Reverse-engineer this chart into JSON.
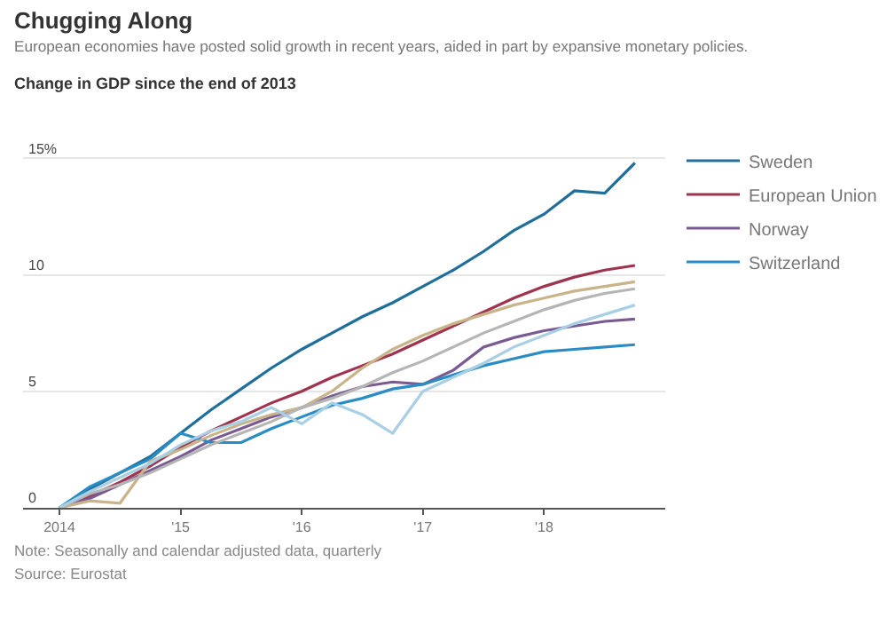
{
  "chart_data": {
    "type": "line",
    "title": "Chugging Along",
    "subtitle": "European economies have posted solid growth in recent years, aided in part by expansive monetary policies.",
    "ylabel": "Change in GDP since the end of 2013",
    "x": [
      2014,
      2014.25,
      2014.5,
      2014.75,
      2015,
      2015.25,
      2015.5,
      2015.75,
      2016,
      2016.25,
      2016.5,
      2016.75,
      2017,
      2017.25,
      2017.5,
      2017.75,
      2018,
      2018.25,
      2018.5,
      2018.75
    ],
    "series": [
      {
        "name": "Sweden",
        "color": "#1f6e9c",
        "values": [
          0,
          0.8,
          1.5,
          2.2,
          3.2,
          4.2,
          5.1,
          6.0,
          6.8,
          7.5,
          8.2,
          8.8,
          9.5,
          10.2,
          11.0,
          11.9,
          12.6,
          13.6,
          13.5,
          14.8
        ]
      },
      {
        "name": "European Union",
        "color": "#a0344f",
        "values": [
          0,
          0.5,
          1.1,
          1.8,
          2.6,
          3.3,
          3.9,
          4.5,
          5.0,
          5.6,
          6.1,
          6.6,
          7.2,
          7.8,
          8.4,
          9.0,
          9.5,
          9.9,
          10.2,
          10.4
        ]
      },
      {
        "name": "Norway",
        "color": "#7a5a92",
        "values": [
          0,
          0.4,
          1.0,
          1.6,
          2.2,
          2.9,
          3.4,
          3.9,
          4.3,
          4.8,
          5.2,
          5.4,
          5.3,
          5.9,
          6.9,
          7.3,
          7.6,
          7.8,
          8.0,
          8.1
        ]
      },
      {
        "name": "Switzerland",
        "color": "#2a8cc4",
        "values": [
          0,
          0.9,
          1.5,
          2.1,
          3.2,
          2.8,
          2.8,
          3.4,
          3.9,
          4.4,
          4.7,
          5.1,
          5.3,
          5.7,
          6.1,
          6.4,
          6.7,
          6.8,
          6.9,
          7.0
        ]
      },
      {
        "color": "#c9b48a",
        "values": [
          0,
          0.3,
          0.2,
          2.0,
          2.5,
          3.1,
          3.6,
          4.0,
          4.3,
          5.0,
          6.0,
          6.8,
          7.4,
          7.9,
          8.3,
          8.7,
          9.0,
          9.3,
          9.5,
          9.7
        ]
      },
      {
        "color": "#b5b5b5",
        "values": [
          0,
          0.6,
          1.0,
          1.5,
          2.1,
          2.7,
          3.2,
          3.7,
          4.3,
          4.7,
          5.2,
          5.8,
          6.3,
          6.9,
          7.5,
          8.0,
          8.5,
          8.9,
          9.2,
          9.4
        ]
      },
      {
        "color": "#a9cfe4",
        "values": [
          0,
          0.7,
          1.3,
          1.9,
          2.7,
          3.3,
          3.7,
          4.3,
          3.6,
          4.5,
          4.0,
          3.2,
          5.0,
          5.6,
          6.2,
          6.9,
          7.4,
          7.9,
          8.3,
          8.7
        ]
      }
    ],
    "xlim": [
      2013.7,
      2019.0
    ],
    "xticks": [
      {
        "value": 2014,
        "label": "2014"
      },
      {
        "value": 2015,
        "label": "'15"
      },
      {
        "value": 2016,
        "label": "'16"
      },
      {
        "value": 2017,
        "label": "'17"
      },
      {
        "value": 2018,
        "label": "'18"
      }
    ],
    "ylim": [
      0,
      16
    ],
    "yticks": [
      0,
      5,
      10,
      {
        "value": 15,
        "label": "15%"
      }
    ],
    "grid": "y",
    "legend": "top right",
    "marker": "none",
    "line_style": "solid",
    "annotations": [
      "Note: Seasonally and calendar adjusted data, quarterly",
      "Source: Eurostat"
    ]
  }
}
